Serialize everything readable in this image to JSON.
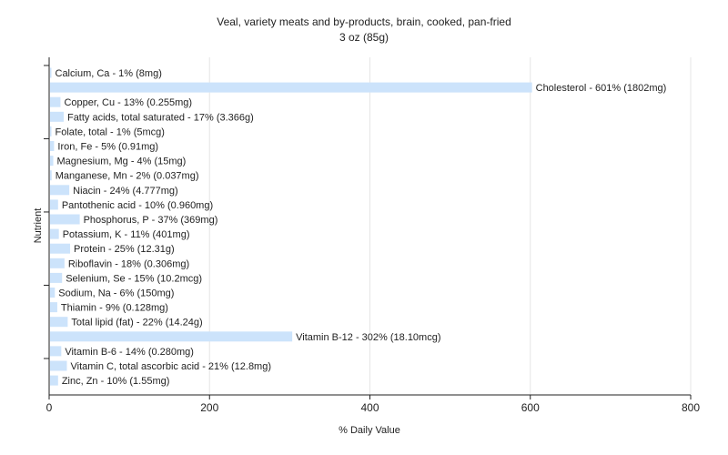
{
  "chart_data": {
    "type": "bar",
    "orientation": "horizontal",
    "title": "Veal, variety meats and by-products, brain, cooked, pan-fried",
    "subtitle": "3 oz (85g)",
    "xlabel": "% Daily Value",
    "ylabel": "Nutrient",
    "xlim": [
      0,
      800
    ],
    "xticks": [
      "0",
      "200",
      "400",
      "600",
      "800"
    ],
    "grid": true,
    "bar_color": "#cce3fb",
    "categories": [
      "Calcium, Ca",
      "Cholesterol",
      "Copper, Cu",
      "Fatty acids, total saturated",
      "Folate, total",
      "Iron, Fe",
      "Magnesium, Mg",
      "Manganese, Mn",
      "Niacin",
      "Pantothenic acid",
      "Phosphorus, P",
      "Potassium, K",
      "Protein",
      "Riboflavin",
      "Selenium, Se",
      "Sodium, Na",
      "Thiamin",
      "Total lipid (fat)",
      "Vitamin B-12",
      "Vitamin B-6",
      "Vitamin C, total ascorbic acid",
      "Zinc, Zn"
    ],
    "values": [
      1,
      601,
      13,
      17,
      1,
      5,
      4,
      2,
      24,
      10,
      37,
      11,
      25,
      18,
      15,
      6,
      9,
      22,
      302,
      14,
      21,
      10
    ],
    "labels": [
      "Calcium, Ca - 1% (8mg)",
      "Cholesterol - 601% (1802mg)",
      "Copper, Cu - 13% (0.255mg)",
      "Fatty acids, total saturated - 17% (3.366g)",
      "Folate, total - 1% (5mcg)",
      "Iron, Fe - 5% (0.91mg)",
      "Magnesium, Mg - 4% (15mg)",
      "Manganese, Mn - 2% (0.037mg)",
      "Niacin - 24% (4.777mg)",
      "Pantothenic acid - 10% (0.960mg)",
      "Phosphorus, P - 37% (369mg)",
      "Potassium, K - 11% (401mg)",
      "Protein - 25% (12.31g)",
      "Riboflavin - 18% (0.306mg)",
      "Selenium, Se - 15% (10.2mcg)",
      "Sodium, Na - 6% (150mg)",
      "Thiamin - 9% (0.128mg)",
      "Total lipid (fat) - 22% (14.24g)",
      "Vitamin B-12 - 302% (18.10mcg)",
      "Vitamin B-6 - 14% (0.280mg)",
      "Vitamin C, total ascorbic acid - 21% (12.8mg)",
      "Zinc, Zn - 10% (1.55mg)"
    ]
  }
}
